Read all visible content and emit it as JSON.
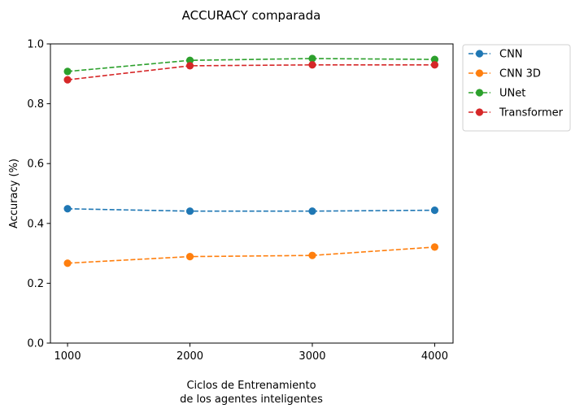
{
  "chart_data": {
    "type": "line",
    "title": "ACCURACY comparada",
    "xlabel_lines": [
      "Ciclos de Entrenamiento",
      "de los agentes inteligentes"
    ],
    "ylabel": "Accuracy (%)",
    "x": [
      1000,
      2000,
      3000,
      4000
    ],
    "xticks": [
      "1000",
      "2000",
      "3000",
      "4000"
    ],
    "yticks": [
      "0.0",
      "0.2",
      "0.4",
      "0.6",
      "0.8",
      "1.0"
    ],
    "xlim": [
      860,
      4150
    ],
    "ylim": [
      0,
      1
    ],
    "grid": false,
    "legend_position": "outside upper-right",
    "series": [
      {
        "name": "CNN",
        "color": "#1f77b4",
        "values": [
          0.449,
          0.441,
          0.441,
          0.444
        ]
      },
      {
        "name": "CNN 3D",
        "color": "#ff7f0e",
        "values": [
          0.267,
          0.289,
          0.293,
          0.321
        ]
      },
      {
        "name": "UNet",
        "color": "#2ca02c",
        "values": [
          0.908,
          0.945,
          0.951,
          0.948
        ]
      },
      {
        "name": "Transformer",
        "color": "#d62728",
        "values": [
          0.88,
          0.927,
          0.93,
          0.93
        ]
      }
    ]
  }
}
